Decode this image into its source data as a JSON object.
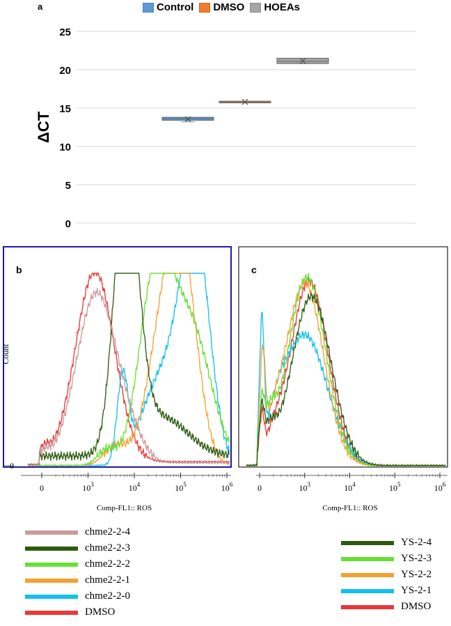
{
  "panel_a": {
    "label": "a",
    "legend": [
      {
        "name": "Control",
        "color": "#5b9bd5"
      },
      {
        "name": "DMSO",
        "color": "#ed7d31"
      },
      {
        "name": "HOEAs",
        "color": "#a5a5a5"
      }
    ]
  },
  "panel_b": {
    "label": "b",
    "ylabel": "Count",
    "xlabel": "Comp-FL1:: ROS",
    "y0_label": "0"
  },
  "panel_c": {
    "label": "c",
    "xlabel": "Comp-FL1:: ROS"
  },
  "legend_b": [
    {
      "name": "chme2-2-4",
      "color": "#cc9999"
    },
    {
      "name": "chme2-2-3",
      "color": "#2d5a0e"
    },
    {
      "name": "chme2-2-2",
      "color": "#66e033"
    },
    {
      "name": "chme2-2-1",
      "color": "#f5a030"
    },
    {
      "name": "chme2-2-0",
      "color": "#11c0ee"
    },
    {
      "name": "DMSO",
      "color": "#e83838"
    }
  ],
  "legend_c": [
    {
      "name": "YS-2-4",
      "color": "#2d5a0e"
    },
    {
      "name": "YS-2-3",
      "color": "#66e033"
    },
    {
      "name": "YS-2-2",
      "color": "#f5a030"
    },
    {
      "name": "YS-2-1",
      "color": "#11c0ee"
    },
    {
      "name": "DMSO",
      "color": "#e83838"
    }
  ],
  "chart_data": [
    {
      "type": "box",
      "ylabel": "ΔCT",
      "ylim": [
        0,
        25
      ],
      "yticks": [
        0,
        5,
        10,
        15,
        20,
        25
      ],
      "grid": true,
      "legend_position": "top",
      "series": [
        {
          "name": "Control",
          "q1": 13.4,
          "median": 13.6,
          "q3": 13.8,
          "mean": 13.55,
          "min": 13.2,
          "max": 13.8
        },
        {
          "name": "DMSO",
          "q1": 15.7,
          "median": 15.8,
          "q3": 15.9,
          "mean": 15.8,
          "min": 15.7,
          "max": 15.9
        },
        {
          "name": "HOEAs",
          "q1": 20.8,
          "median": 21.1,
          "q3": 21.5,
          "mean": 21.15,
          "min": 20.8,
          "max": 21.5
        }
      ]
    },
    {
      "type": "line",
      "xscale": "log",
      "xticks": [
        "0",
        "10^3",
        "10^4",
        "10^5",
        "10^6"
      ],
      "xlabel": "Comp-FL1:: ROS",
      "ylabel": "Count",
      "series": [
        {
          "name": "chme2-2-4",
          "peak_x_log": 3.15,
          "peak_height": 0.9
        },
        {
          "name": "chme2-2-3",
          "peak_x_log": 3.85,
          "peak_height": 0.97
        },
        {
          "name": "chme2-2-2",
          "peak_x_log": 4.4,
          "peak_height": 0.93
        },
        {
          "name": "chme2-2-1",
          "peak_x_log": 5.0,
          "peak_height": 0.95
        },
        {
          "name": "chme2-2-0",
          "peak_x_log": 5.3,
          "peak_height": 0.98
        },
        {
          "name": "DMSO",
          "peak_x_log": 3.1,
          "peak_height": 0.99
        }
      ]
    },
    {
      "type": "line",
      "xscale": "log",
      "xticks": [
        "0",
        "10^3",
        "10^4",
        "10^5",
        "10^6"
      ],
      "xlabel": "Comp-FL1:: ROS",
      "series": [
        {
          "name": "YS-2-4",
          "peak_x_log": 3.1,
          "peak_height": 0.88
        },
        {
          "name": "YS-2-3",
          "peak_x_log": 3.05,
          "peak_height": 0.98
        },
        {
          "name": "YS-2-2",
          "peak_x_log": 3.0,
          "peak_height": 0.95
        },
        {
          "name": "YS-2-1",
          "peak_x_log": 3.0,
          "peak_height": 0.7
        },
        {
          "name": "DMSO",
          "peak_x_log": 3.1,
          "peak_height": 0.96
        }
      ]
    }
  ]
}
